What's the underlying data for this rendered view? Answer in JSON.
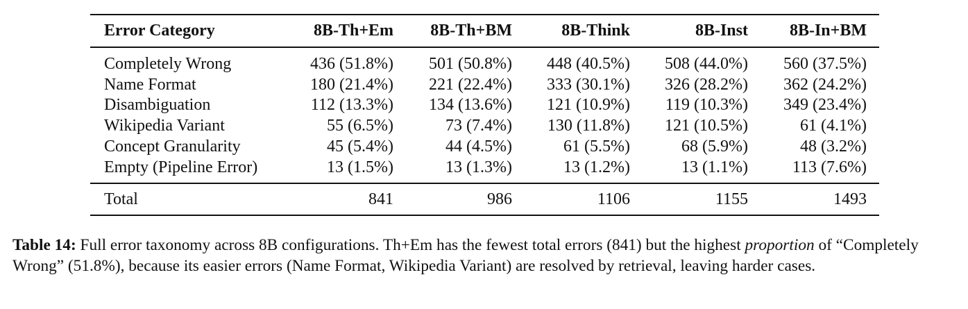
{
  "table": {
    "header": [
      "Error Category",
      "8B-Th+Em",
      "8B-Th+BM",
      "8B-Think",
      "8B-Inst",
      "8B-In+BM"
    ],
    "rows": [
      [
        "Completely Wrong",
        "436 (51.8%)",
        "501 (50.8%)",
        "448 (40.5%)",
        "508 (44.0%)",
        "560 (37.5%)"
      ],
      [
        "Name Format",
        "180 (21.4%)",
        "221 (22.4%)",
        "333 (30.1%)",
        "326 (28.2%)",
        "362 (24.2%)"
      ],
      [
        "Disambiguation",
        "112 (13.3%)",
        "134 (13.6%)",
        "121 (10.9%)",
        "119 (10.3%)",
        "349 (23.4%)"
      ],
      [
        "Wikipedia Variant",
        "55 (6.5%)",
        "73 (7.4%)",
        "130 (11.8%)",
        "121 (10.5%)",
        "61 (4.1%)"
      ],
      [
        "Concept Granularity",
        "45 (5.4%)",
        "44 (4.5%)",
        "61 (5.5%)",
        "68 (5.9%)",
        "48 (3.2%)"
      ],
      [
        "Empty (Pipeline Error)",
        "13 (1.5%)",
        "13 (1.3%)",
        "13 (1.2%)",
        "13 (1.1%)",
        "113 (7.6%)"
      ]
    ],
    "total": [
      "Total",
      "841",
      "986",
      "1106",
      "1155",
      "1493"
    ]
  },
  "caption": {
    "label": "Table 14:",
    "text_before": "Full error taxonomy across 8B configurations. Th+Em has the fewest total errors (841) but the highest",
    "emphasis": "proportion",
    "text_after": "of “Completely Wrong” (51.8%), because its easier errors (Name Format, Wikipedia Variant) are resolved by retrieval, leaving harder cases."
  }
}
